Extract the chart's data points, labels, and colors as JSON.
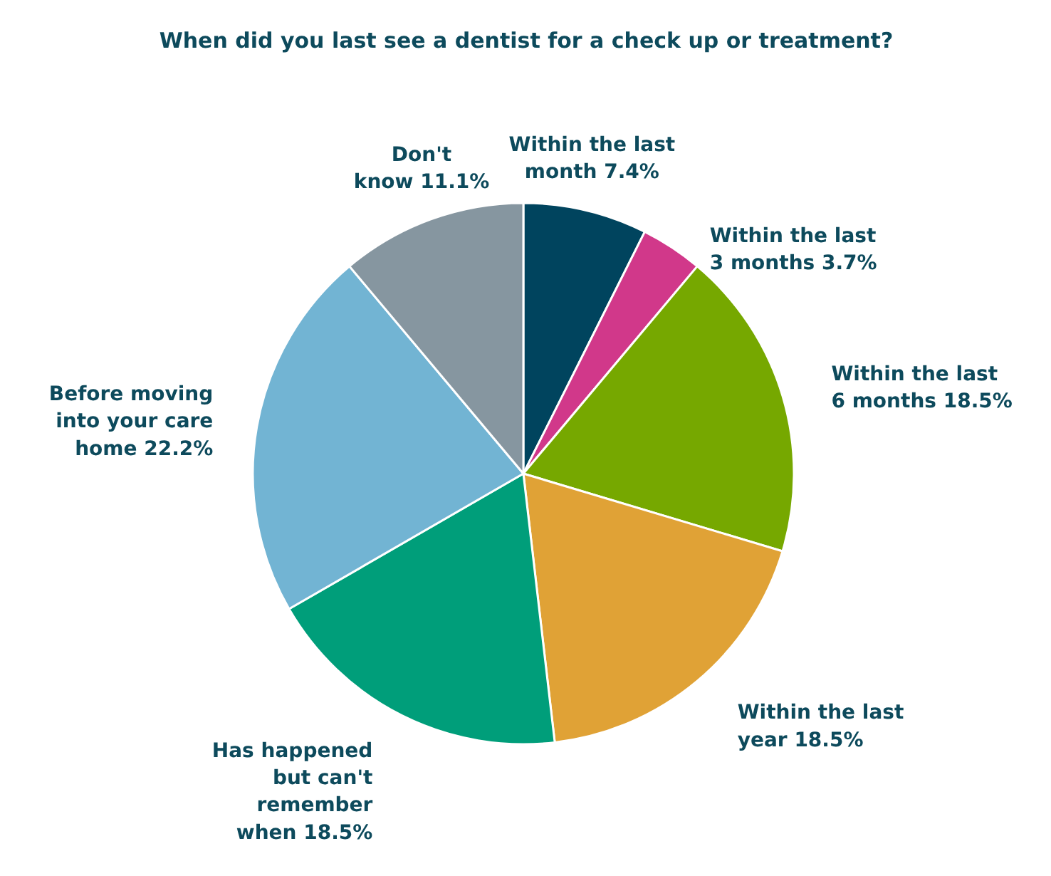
{
  "chart_data": {
    "type": "pie",
    "title": "When did you last see a dentist for a check up or treatment?",
    "categories": [
      "Within the last month",
      "Within the last 3 months",
      "Within the last 6 months",
      "Within the last year",
      "Has happened but can't remember when",
      "Before moving into your care home",
      "Don't know"
    ],
    "values": [
      7.4,
      3.7,
      18.5,
      18.5,
      18.5,
      22.2,
      11.1
    ],
    "value_labels": [
      "7.4%",
      "3.7%",
      "18.5%",
      "18.5%",
      "18.5%",
      "22.2%",
      "11.1%"
    ],
    "colors": [
      "#00445e",
      "#d1388a",
      "#76a800",
      "#e0a236",
      "#009e7a",
      "#72b4d3",
      "#8696a0"
    ]
  }
}
